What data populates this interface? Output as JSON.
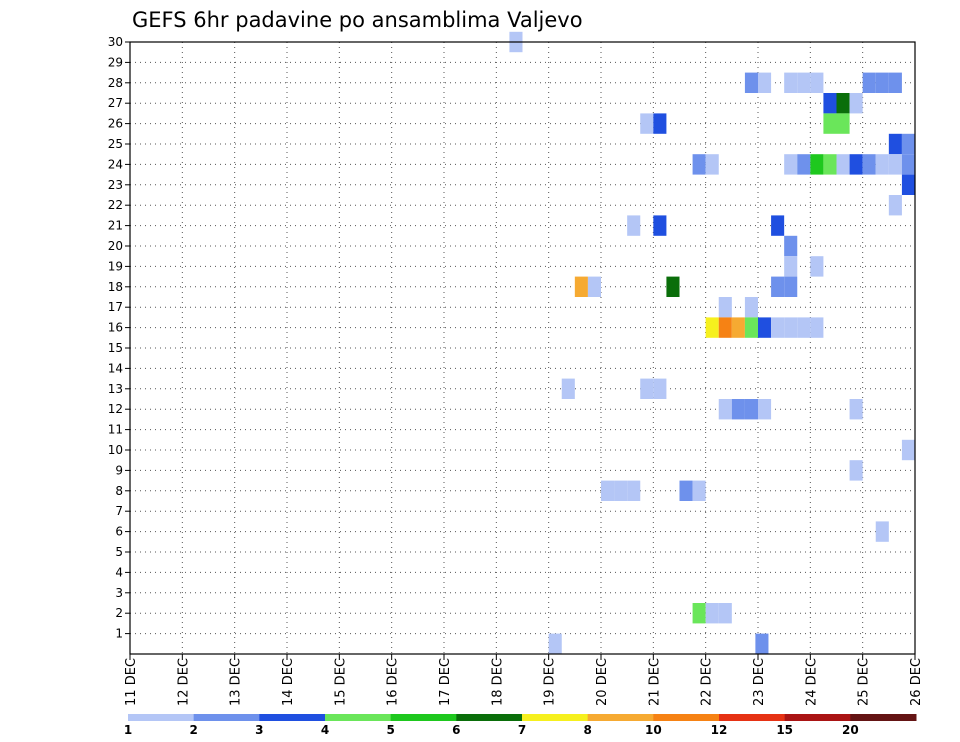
{
  "chart_data": {
    "type": "heatmap",
    "title": "GEFS 6hr padavine po ansamblima Valjevo",
    "xlabel": "",
    "ylabel": "",
    "y_ticks": [
      "1",
      "2",
      "3",
      "4",
      "5",
      "6",
      "7",
      "8",
      "9",
      "10",
      "11",
      "12",
      "13",
      "14",
      "15",
      "16",
      "17",
      "18",
      "19",
      "20",
      "21",
      "22",
      "23",
      "24",
      "25",
      "26",
      "27",
      "28",
      "29",
      "30"
    ],
    "x_ticks": [
      "11 DEC",
      "12 DEC",
      "13 DEC",
      "14 DEC",
      "15 DEC",
      "16 DEC",
      "17 DEC",
      "18 DEC",
      "19 DEC",
      "20 DEC",
      "21 DEC",
      "22 DEC",
      "23 DEC",
      "24 DEC",
      "25 DEC",
      "26 DEC"
    ],
    "x_range_days": [
      11,
      26
    ],
    "y_range_members": [
      0,
      30
    ],
    "grid": true,
    "colorbar": {
      "levels": [
        "1",
        "2",
        "3",
        "4",
        "5",
        "6",
        "7",
        "8",
        "10",
        "12",
        "15",
        "20"
      ],
      "colors": [
        "#b4c6f6",
        "#6e91ec",
        "#1f4fe0",
        "#6ae65a",
        "#1ec81e",
        "#0a6e0a",
        "#f6f01e",
        "#f6aa32",
        "#f68214",
        "#e63214",
        "#aa1414",
        "#641414"
      ]
    },
    "cells_note": "each cell = [day_start, ensemble_member, precipitation_mm]; cells cover 6h (0.25 day)",
    "cells": [
      [
        18.25,
        30,
        1.5
      ],
      [
        22.75,
        28,
        2.5
      ],
      [
        23.0,
        28,
        1.5
      ],
      [
        23.5,
        28,
        1.5
      ],
      [
        23.75,
        28,
        1.5
      ],
      [
        24.0,
        28,
        1.5
      ],
      [
        25.0,
        28,
        2.5
      ],
      [
        25.25,
        28,
        2.5
      ],
      [
        25.5,
        28,
        2.5
      ],
      [
        24.25,
        27,
        3.5
      ],
      [
        24.5,
        27,
        6.5
      ],
      [
        24.75,
        27,
        1.5
      ],
      [
        20.75,
        26,
        1.5
      ],
      [
        21.0,
        26,
        3.5
      ],
      [
        24.25,
        26,
        4.5
      ],
      [
        24.5,
        26,
        4.5
      ],
      [
        25.5,
        25,
        3.5
      ],
      [
        25.75,
        25,
        2.5
      ],
      [
        21.75,
        24,
        2.5
      ],
      [
        22.0,
        24,
        1.5
      ],
      [
        23.5,
        24,
        1.5
      ],
      [
        23.75,
        24,
        2.5
      ],
      [
        24.0,
        24,
        5.5
      ],
      [
        24.25,
        24,
        4.5
      ],
      [
        24.5,
        24,
        1.5
      ],
      [
        24.75,
        24,
        3.5
      ],
      [
        25.0,
        24,
        2.5
      ],
      [
        25.25,
        24,
        1.5
      ],
      [
        25.5,
        24,
        1.5
      ],
      [
        25.75,
        24,
        2.5
      ],
      [
        25.75,
        23,
        3.5
      ],
      [
        25.5,
        22,
        1.5
      ],
      [
        20.5,
        21,
        1.5
      ],
      [
        21.0,
        21,
        3.5
      ],
      [
        23.25,
        21,
        3.5
      ],
      [
        23.5,
        20,
        2.5
      ],
      [
        23.5,
        19,
        1.5
      ],
      [
        24.0,
        19,
        1.5
      ],
      [
        19.5,
        18,
        9.0
      ],
      [
        19.75,
        18,
        1.5
      ],
      [
        21.25,
        18,
        6.5
      ],
      [
        23.25,
        18,
        2.5
      ],
      [
        23.5,
        18,
        2.5
      ],
      [
        22.25,
        17,
        1.5
      ],
      [
        22.75,
        17,
        1.5
      ],
      [
        22.0,
        16,
        7.5
      ],
      [
        22.25,
        16,
        11.0
      ],
      [
        22.5,
        16,
        9.0
      ],
      [
        22.75,
        16,
        4.5
      ],
      [
        23.0,
        16,
        3.5
      ],
      [
        23.25,
        16,
        1.5
      ],
      [
        23.5,
        16,
        1.5
      ],
      [
        23.75,
        16,
        1.5
      ],
      [
        24.0,
        16,
        1.5
      ],
      [
        19.25,
        13,
        1.5
      ],
      [
        20.75,
        13,
        1.5
      ],
      [
        21.0,
        13,
        1.5
      ],
      [
        22.25,
        12,
        1.5
      ],
      [
        22.5,
        12,
        2.5
      ],
      [
        22.75,
        12,
        2.5
      ],
      [
        23.0,
        12,
        1.5
      ],
      [
        24.75,
        12,
        1.5
      ],
      [
        25.75,
        10,
        1.5
      ],
      [
        24.75,
        9,
        1.5
      ],
      [
        20.0,
        8,
        1.5
      ],
      [
        20.25,
        8,
        1.5
      ],
      [
        20.5,
        8,
        1.5
      ],
      [
        21.5,
        8,
        2.5
      ],
      [
        21.75,
        8,
        1.5
      ],
      [
        25.25,
        6,
        1.5
      ],
      [
        21.75,
        2,
        4.5
      ],
      [
        22.0,
        2,
        1.5
      ],
      [
        22.25,
        2,
        1.5
      ],
      [
        19.0,
        0.5,
        1.5
      ],
      [
        22.95,
        0.5,
        2.5
      ]
    ]
  }
}
